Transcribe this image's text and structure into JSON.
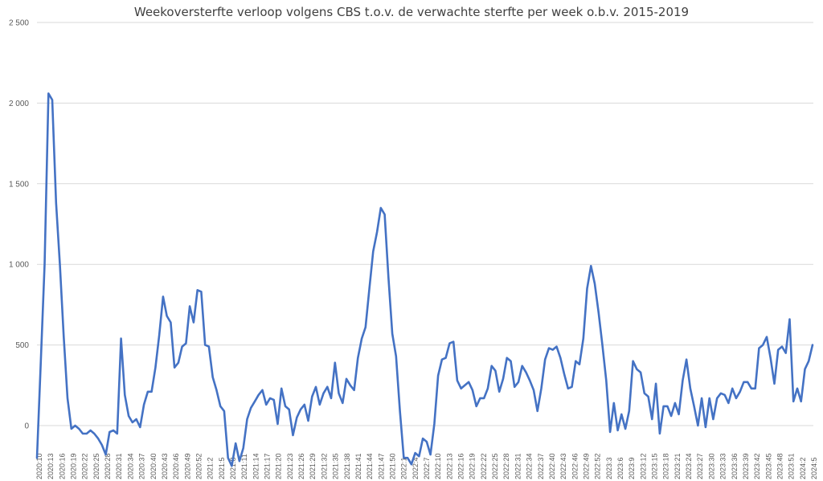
{
  "chart_data": {
    "type": "line",
    "title": "Weekoversterfte verloop volgens CBS t.o.v. de verwachte sterfte per week o.b.v. 2015-2019",
    "xlabel": "",
    "ylabel": "",
    "ylim": [
      -250,
      2500
    ],
    "y_ticks": [
      0,
      500,
      1000,
      1500,
      2000,
      2500
    ],
    "y_tick_labels": [
      "0",
      "500",
      "1 000",
      "1 500",
      "2 000",
      "2 500"
    ],
    "grid": true,
    "legend": "none",
    "line_color": "#4472c4",
    "x_tick_labels": [
      "2020:10",
      "2020:13",
      "2020:16",
      "2020:19",
      "2020:22",
      "2020:25",
      "2020:28",
      "2020:31",
      "2020:34",
      "2020:37",
      "2020:40",
      "2020:43",
      "2020:46",
      "2020:49",
      "2020:52",
      "2021:2",
      "2021:5",
      "2021:8",
      "2021:11",
      "2021:14",
      "2021:17",
      "2021:20",
      "2021:23",
      "2021:26",
      "2021:29",
      "2021:32",
      "2021:35",
      "2021:38",
      "2021:41",
      "2021:44",
      "2021:47",
      "2021:50",
      "2022:1",
      "2022:4",
      "2022:7",
      "2022:10",
      "2022:13",
      "2022:16",
      "2022:19",
      "2022:22",
      "2022:25",
      "2022:28",
      "2022:31",
      "2022:34",
      "2022:37",
      "2022:40",
      "2022:43",
      "2022:46",
      "2022:49",
      "2022:52",
      "2023:3",
      "2023:6",
      "2023:9",
      "2023:12",
      "2023:15",
      "2023:18",
      "2023:21",
      "2023:24",
      "2023:27",
      "2023:30",
      "2023:33",
      "2023:36",
      "2023:39",
      "2023:42",
      "2023:45",
      "2023:48",
      "2023:51",
      "2024:2",
      "2024:5"
    ],
    "series": [
      {
        "values": [
          -200,
          400,
          1000,
          2060,
          2020,
          1380,
          1000,
          550,
          170,
          -20,
          0,
          -20,
          -50,
          -50,
          -30,
          -50,
          -80,
          -120,
          -180,
          -40,
          -30,
          -50,
          540,
          190,
          60,
          20,
          40,
          -10,
          130,
          210,
          210,
          360,
          560,
          800,
          680,
          640,
          360,
          390,
          490,
          510,
          740,
          640,
          840,
          830,
          500,
          490,
          300,
          220,
          120,
          90,
          -200,
          -250,
          -110,
          -220,
          -140,
          40,
          110,
          150,
          190,
          220,
          130,
          170,
          160,
          10,
          230,
          120,
          100,
          -60,
          50,
          100,
          130,
          30,
          180,
          240,
          130,
          200,
          240,
          170,
          390,
          200,
          140,
          290,
          250,
          220,
          420,
          540,
          610,
          850,
          1080,
          1200,
          1350,
          1310,
          920,
          570,
          430,
          90,
          -200,
          -200,
          -240,
          -170,
          -190,
          -80,
          -100,
          -180,
          10,
          310,
          410,
          420,
          510,
          520,
          280,
          230,
          250,
          270,
          220,
          120,
          170,
          170,
          230,
          370,
          340,
          210,
          290,
          420,
          400,
          240,
          270,
          370,
          330,
          280,
          220,
          90,
          230,
          410,
          480,
          470,
          490,
          420,
          320,
          230,
          240,
          400,
          380,
          540,
          850,
          990,
          880,
          700,
          500,
          280,
          -40,
          140,
          -30,
          70,
          -20,
          90,
          400,
          350,
          330,
          200,
          180,
          40,
          260,
          -50,
          120,
          120,
          60,
          140,
          70,
          280,
          410,
          230,
          120,
          0,
          170,
          -10,
          170,
          40,
          170,
          200,
          190,
          140,
          230,
          170,
          210,
          270,
          270,
          230,
          230,
          480,
          500,
          550,
          420,
          260,
          470,
          490,
          450,
          660,
          150,
          230,
          150,
          350,
          400,
          500
        ]
      }
    ]
  }
}
